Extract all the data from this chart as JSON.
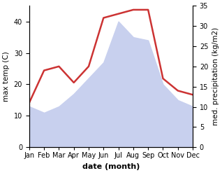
{
  "months": [
    "Jan",
    "Feb",
    "Mar",
    "Apr",
    "May",
    "Jun",
    "Jul",
    "Aug",
    "Sep",
    "Oct",
    "Nov",
    "Dec"
  ],
  "max_temp": [
    13,
    11,
    13,
    17,
    22,
    27,
    40,
    35,
    34,
    20,
    15,
    13
  ],
  "precipitation": [
    11,
    19,
    20,
    16,
    20,
    32,
    33,
    34,
    34,
    17,
    14,
    13
  ],
  "temp_color_fill": "#c8d0ee",
  "precip_color": "#cc3333",
  "precip_linewidth": 1.8,
  "ylabel_left": "max temp (C)",
  "ylabel_right": "med. precipitation (kg/m2)",
  "xlabel": "date (month)",
  "ylim_left": [
    0,
    45
  ],
  "ylim_right": [
    0,
    35
  ],
  "yticks_left": [
    0,
    10,
    20,
    30,
    40
  ],
  "yticks_right": [
    0,
    5,
    10,
    15,
    20,
    25,
    30,
    35
  ],
  "label_fontsize": 7.5,
  "tick_fontsize": 7,
  "xlabel_fontsize": 8,
  "background_color": "#ffffff"
}
